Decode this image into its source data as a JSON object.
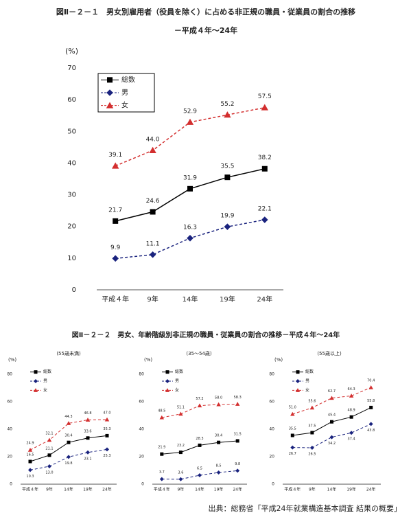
{
  "chart_data": [
    {
      "type": "line",
      "title": "図Ⅱ－２－１　男女別雇用者（役員を除く）に占める非正規の職員・従業員の割合の推移",
      "subtitle": "－平成４年～24年",
      "ylabel": "(%)",
      "categories": [
        "平成４年",
        "9年",
        "14年",
        "19年",
        "24年"
      ],
      "ylim": [
        0,
        70
      ],
      "yticks": [
        0,
        10,
        20,
        30,
        40,
        50,
        60,
        70
      ],
      "series": [
        {
          "name": "総数",
          "color": "#000000",
          "marker": "square",
          "dashed": false,
          "values": [
            21.7,
            24.6,
            31.9,
            35.5,
            38.2
          ],
          "value_labels": [
            "21.7",
            "24.6",
            "31.9",
            "35.5",
            "38.2"
          ]
        },
        {
          "name": "男",
          "color": "#1a237e",
          "marker": "diamond",
          "dashed": true,
          "values": [
            9.9,
            11.1,
            16.3,
            19.9,
            22.1
          ],
          "value_labels": [
            "9.9",
            "11.1",
            "16.3",
            "19.9",
            "22.1"
          ]
        },
        {
          "name": "女",
          "color": "#d32f2f",
          "marker": "triangle",
          "dashed": true,
          "values": [
            39.1,
            44.0,
            52.9,
            55.2,
            57.5
          ],
          "value_labels": [
            "39.1",
            "44.0",
            "52.9",
            "55.2",
            "57.5"
          ]
        }
      ]
    },
    {
      "type": "line",
      "subtitle": "(55歳未満)",
      "ylabel": "(%)",
      "categories": [
        "平成４年",
        "9年",
        "14年",
        "19年",
        "24年"
      ],
      "ylim": [
        0,
        80
      ],
      "yticks": [
        0,
        20,
        40,
        60,
        80
      ],
      "series": [
        {
          "name": "総数",
          "color": "#000000",
          "marker": "square",
          "dashed": false,
          "values": [
            16.5,
            21.1,
            30.4,
            33.6,
            35.3
          ],
          "value_labels": [
            "16.5",
            "21.1",
            "30.4",
            "33.6",
            "35.3"
          ]
        },
        {
          "name": "男",
          "color": "#1a237e",
          "marker": "diamond",
          "dashed": true,
          "values": [
            10.3,
            13.0,
            19.8,
            23.1,
            25.3
          ],
          "value_labels": [
            "10.3",
            "13.0",
            "19.8",
            "23.1",
            "25.3"
          ]
        },
        {
          "name": "女",
          "color": "#d32f2f",
          "marker": "triangle",
          "dashed": true,
          "values": [
            24.9,
            32.1,
            44.3,
            46.8,
            47.0
          ],
          "value_labels": [
            "24.9",
            "32.1",
            "44.3",
            "46.8",
            "47.0"
          ]
        }
      ]
    },
    {
      "type": "line",
      "subtitle": "(35～54歳)",
      "ylabel": "(%)",
      "categories": [
        "平成４年",
        "9年",
        "14年",
        "19年",
        "24年"
      ],
      "ylim": [
        0,
        80
      ],
      "yticks": [
        0,
        20,
        40,
        60,
        80
      ],
      "series": [
        {
          "name": "総数",
          "color": "#000000",
          "marker": "square",
          "dashed": false,
          "values": [
            21.9,
            23.2,
            28.3,
            30.4,
            31.5
          ],
          "value_labels": [
            "21.9",
            "23.2",
            "28.3",
            "30.4",
            "31.5"
          ]
        },
        {
          "name": "男",
          "color": "#1a237e",
          "marker": "diamond",
          "dashed": true,
          "values": [
            3.7,
            3.6,
            6.5,
            8.5,
            9.8
          ],
          "value_labels": [
            "3.7",
            "3.6",
            "6.5",
            "8.5",
            "9.8"
          ]
        },
        {
          "name": "女",
          "color": "#d32f2f",
          "marker": "triangle",
          "dashed": true,
          "values": [
            48.5,
            51.1,
            57.2,
            58.0,
            58.3
          ],
          "value_labels": [
            "48.5",
            "51.1",
            "57.2",
            "58.0",
            "58.3"
          ]
        }
      ]
    },
    {
      "type": "line",
      "subtitle": "(55歳以上)",
      "ylabel": "(%)",
      "categories": [
        "平成４年",
        "9年",
        "14年",
        "19年",
        "24年"
      ],
      "ylim": [
        0,
        80
      ],
      "yticks": [
        0,
        20,
        40,
        60,
        80
      ],
      "series": [
        {
          "name": "総数",
          "color": "#000000",
          "marker": "square",
          "dashed": false,
          "values": [
            35.5,
            37.5,
            45.4,
            48.9,
            55.8
          ],
          "value_labels": [
            "35.5",
            "37.5",
            "45.4",
            "48.9",
            "55.8"
          ]
        },
        {
          "name": "男",
          "color": "#1a237e",
          "marker": "diamond",
          "dashed": true,
          "values": [
            26.7,
            26.5,
            34.2,
            37.4,
            43.8
          ],
          "value_labels": [
            "26.7",
            "26.5",
            "34.2",
            "37.4",
            "43.8"
          ]
        },
        {
          "name": "女",
          "color": "#d32f2f",
          "marker": "triangle",
          "dashed": true,
          "values": [
            51.0,
            55.6,
            62.7,
            64.3,
            70.4
          ],
          "value_labels": [
            "51.0",
            "55.6",
            "62.7",
            "64.3",
            "70.4"
          ]
        }
      ]
    }
  ],
  "figure_title": "図Ⅱ－２－２　男女、年齢階級別非正規の職員・従業員の割合の推移－平成４年～24年",
  "source": "出典：総務省「平成24年就業構造基本調査 結果の概要」"
}
